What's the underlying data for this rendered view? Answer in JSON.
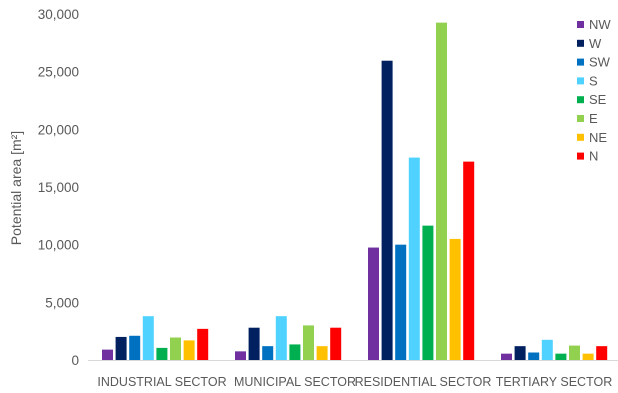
{
  "chart_data": {
    "type": "bar",
    "ylabel": "Potential area [m²]",
    "ylim": [
      0,
      30000
    ],
    "yticks": [
      0,
      5000,
      10000,
      15000,
      20000,
      25000,
      30000
    ],
    "ytick_labels": [
      "0",
      "5,000",
      "10,000",
      "15,000",
      "20,000",
      "25,000",
      "30,000"
    ],
    "grid": false,
    "legend_position": "top-right",
    "categories": [
      "INDUSTRIAL SECTOR",
      "MUNICIPAL SECTOR",
      "RESIDENTIAL SECTOR",
      "TERTIARY SECTOR"
    ],
    "series": [
      {
        "name": "NW",
        "color": "#7030A0",
        "values": [
          900,
          750,
          9750,
          550
        ]
      },
      {
        "name": "W",
        "color": "#002060",
        "values": [
          2000,
          2800,
          25950,
          1200
        ]
      },
      {
        "name": "SW",
        "color": "#0070C0",
        "values": [
          2100,
          1200,
          10000,
          650
        ]
      },
      {
        "name": "S",
        "color": "#4FD2FF",
        "values": [
          3800,
          3800,
          17550,
          1750
        ]
      },
      {
        "name": "SE",
        "color": "#00B050",
        "values": [
          1050,
          1350,
          11650,
          550
        ]
      },
      {
        "name": "E",
        "color": "#92D050",
        "values": [
          1950,
          3000,
          29250,
          1250
        ]
      },
      {
        "name": "NE",
        "color": "#FFC000",
        "values": [
          1700,
          1200,
          10500,
          550
        ]
      },
      {
        "name": "N",
        "color": "#FF0000",
        "values": [
          2700,
          2800,
          17200,
          1200
        ]
      }
    ]
  }
}
